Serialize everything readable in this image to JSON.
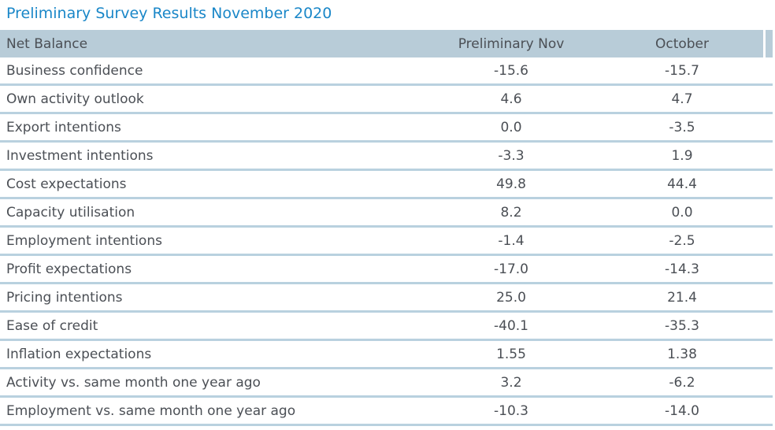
{
  "title": "Preliminary Survey Results November 2020",
  "chart_data": {
    "type": "table",
    "title": "Preliminary Survey Results November 2020",
    "columns": [
      "Net Balance",
      "Preliminary Nov",
      "October"
    ],
    "rows": [
      {
        "label": "Business confidence",
        "prelim_nov": "-15.6",
        "october": "-15.7"
      },
      {
        "label": "Own activity outlook",
        "prelim_nov": "4.6",
        "october": "4.7"
      },
      {
        "label": "Export intentions",
        "prelim_nov": "0.0",
        "october": "-3.5"
      },
      {
        "label": "Investment intentions",
        "prelim_nov": "-3.3",
        "october": "1.9"
      },
      {
        "label": "Cost expectations",
        "prelim_nov": "49.8",
        "october": "44.4"
      },
      {
        "label": "Capacity utilisation",
        "prelim_nov": "8.2",
        "october": "0.0"
      },
      {
        "label": "Employment intentions",
        "prelim_nov": "-1.4",
        "october": "-2.5"
      },
      {
        "label": "Profit expectations",
        "prelim_nov": "-17.0",
        "october": "-14.3"
      },
      {
        "label": "Pricing intentions",
        "prelim_nov": "25.0",
        "october": "21.4"
      },
      {
        "label": "Ease of credit",
        "prelim_nov": "-40.1",
        "october": "-35.3"
      },
      {
        "label": "Inflation expectations",
        "prelim_nov": "1.55",
        "october": "1.38"
      },
      {
        "label": "Activity vs. same month one year ago",
        "prelim_nov": "3.2",
        "october": "-6.2"
      },
      {
        "label": "Employment vs. same month one year ago",
        "prelim_nov": "-10.3",
        "october": "-14.0"
      }
    ]
  },
  "colors": {
    "title": "#1a87c8",
    "header_bg": "#b8ccd8",
    "divider": "#b9d1df",
    "text": "#4b4f55"
  }
}
